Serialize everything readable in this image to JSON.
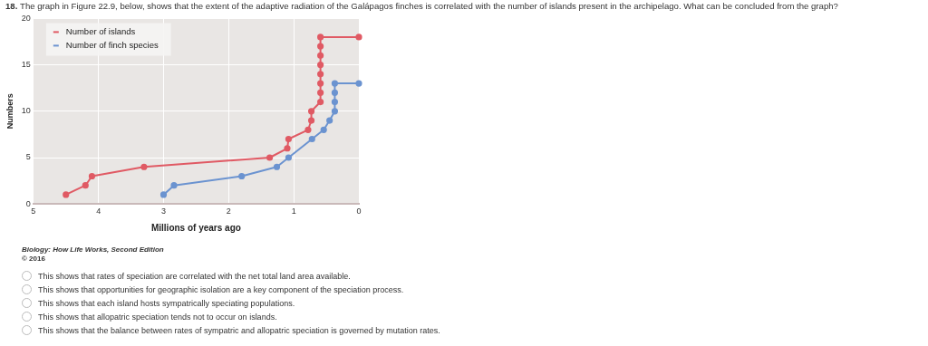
{
  "chart_data": {
    "type": "line",
    "title": "18. The graph in Figure 22.9, below, shows that the extent of the adaptive radiation of the Galápagos finches is correlated with the number of islands present in the archipelago. What can be concluded from the graph?",
    "xlabel": "Millions of years ago",
    "ylabel": "Numbers",
    "series": [
      {
        "name": "Number of islands",
        "color": "#e05a64",
        "x": [
          4.5,
          4.2,
          4.1,
          3.3,
          1.37,
          1.1,
          1.08,
          0.78,
          0.73,
          0.73,
          0.59,
          0.59,
          0.59,
          0.59,
          0.59,
          0.59,
          0.59,
          0.59,
          0
        ],
        "values": [
          1,
          2,
          3,
          4,
          5,
          6,
          7,
          8,
          9,
          10,
          11,
          12,
          13,
          14,
          15,
          16,
          17,
          18,
          18
        ]
      },
      {
        "name": "Number of finch species",
        "color": "#6b93d0",
        "x": [
          3.0,
          2.84,
          1.8,
          1.26,
          1.08,
          0.72,
          0.54,
          0.45,
          0.37,
          0.37,
          0.37,
          0.37,
          0
        ],
        "values": [
          1,
          2,
          3,
          4,
          5,
          7,
          8,
          9,
          10,
          11,
          12,
          13,
          13
        ]
      }
    ],
    "xlim": [
      5,
      0
    ],
    "xticks": [
      5,
      4,
      3,
      2,
      1,
      0
    ],
    "ylim": [
      0,
      20
    ],
    "yticks": [
      0,
      5,
      10,
      15,
      20
    ],
    "grid": true,
    "legend": "top left",
    "marker": "circle",
    "line_style": "solid",
    "annotations": [
      "Biology: How Life Works, Second Edition",
      "© 2016",
      "This shows that rates of speciation are correlated with the net total land area available.",
      "This shows that opportunities for geographic isolation are a key component of the speciation process.",
      "This shows that each island hosts sympatrically speciating populations.",
      "This shows that allopatric speciation tends not to occur on islands.",
      "This shows that the balance between rates of sympatric and allopatric speciation is governed by mutation rates."
    ]
  }
}
